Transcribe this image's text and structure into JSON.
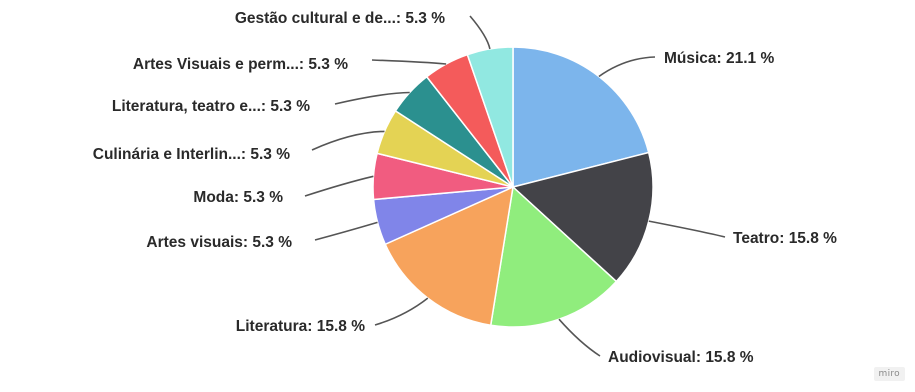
{
  "chart_data": {
    "type": "pie",
    "title": "",
    "slices": [
      {
        "label": "Música",
        "value": 21.1,
        "display": "Música: 21.1 %",
        "color": "#7cb5ec"
      },
      {
        "label": "Teatro",
        "value": 15.8,
        "display": "Teatro: 15.8 %",
        "color": "#434348"
      },
      {
        "label": "Audiovisual",
        "value": 15.8,
        "display": "Audiovisual: 15.8 %",
        "color": "#90ed7d"
      },
      {
        "label": "Literatura",
        "value": 15.8,
        "display": "Literatura: 15.8 %",
        "color": "#f7a35c"
      },
      {
        "label": "Artes visuais",
        "value": 5.3,
        "display": "Artes visuais: 5.3 %",
        "color": "#8085e9"
      },
      {
        "label": "Moda",
        "value": 5.3,
        "display": "Moda: 5.3 %",
        "color": "#f15c80"
      },
      {
        "label": "Culinária e Interlin...",
        "value": 5.3,
        "display": "Culinária e Interlin...: 5.3 %",
        "color": "#e4d354"
      },
      {
        "label": "Literatura, teatro e...",
        "value": 5.3,
        "display": "Literatura, teatro e...: 5.3 %",
        "color": "#2b908f"
      },
      {
        "label": "Artes Visuais e perm...",
        "value": 5.3,
        "display": "Artes Visuais e perm...: 5.3 %",
        "color": "#f45b5b"
      },
      {
        "label": "Gestão cultural e de...",
        "value": 5.3,
        "display": "Gestão cultural e de...: 5.3 %",
        "color": "#91e8e1"
      }
    ]
  },
  "watermark": "miro"
}
